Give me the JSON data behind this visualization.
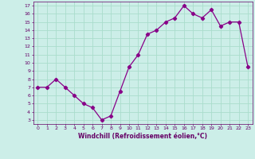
{
  "x": [
    0,
    1,
    2,
    3,
    4,
    5,
    6,
    7,
    8,
    9,
    10,
    11,
    12,
    13,
    14,
    15,
    16,
    17,
    18,
    19,
    20,
    21,
    22,
    23
  ],
  "y": [
    7.0,
    7.0,
    8.0,
    7.0,
    6.0,
    5.0,
    4.5,
    3.0,
    3.5,
    6.5,
    9.5,
    11.0,
    13.5,
    14.0,
    15.0,
    15.5,
    17.0,
    16.0,
    15.5,
    16.5,
    14.5,
    15.0,
    15.0,
    9.5
  ],
  "line_color": "#880088",
  "marker": "D",
  "marker_size": 2.2,
  "bg_color": "#cceee8",
  "grid_color": "#aaddcc",
  "xlabel": "Windchill (Refroidissement éolien,°C)",
  "xlabel_color": "#660066",
  "tick_color": "#660066",
  "ylim": [
    2.5,
    17.5
  ],
  "xlim": [
    -0.5,
    23.5
  ],
  "yticks": [
    3,
    4,
    5,
    6,
    7,
    8,
    9,
    10,
    11,
    12,
    13,
    14,
    15,
    16,
    17
  ],
  "xticks": [
    0,
    1,
    2,
    3,
    4,
    5,
    6,
    7,
    8,
    9,
    10,
    11,
    12,
    13,
    14,
    15,
    16,
    17,
    18,
    19,
    20,
    21,
    22,
    23
  ]
}
